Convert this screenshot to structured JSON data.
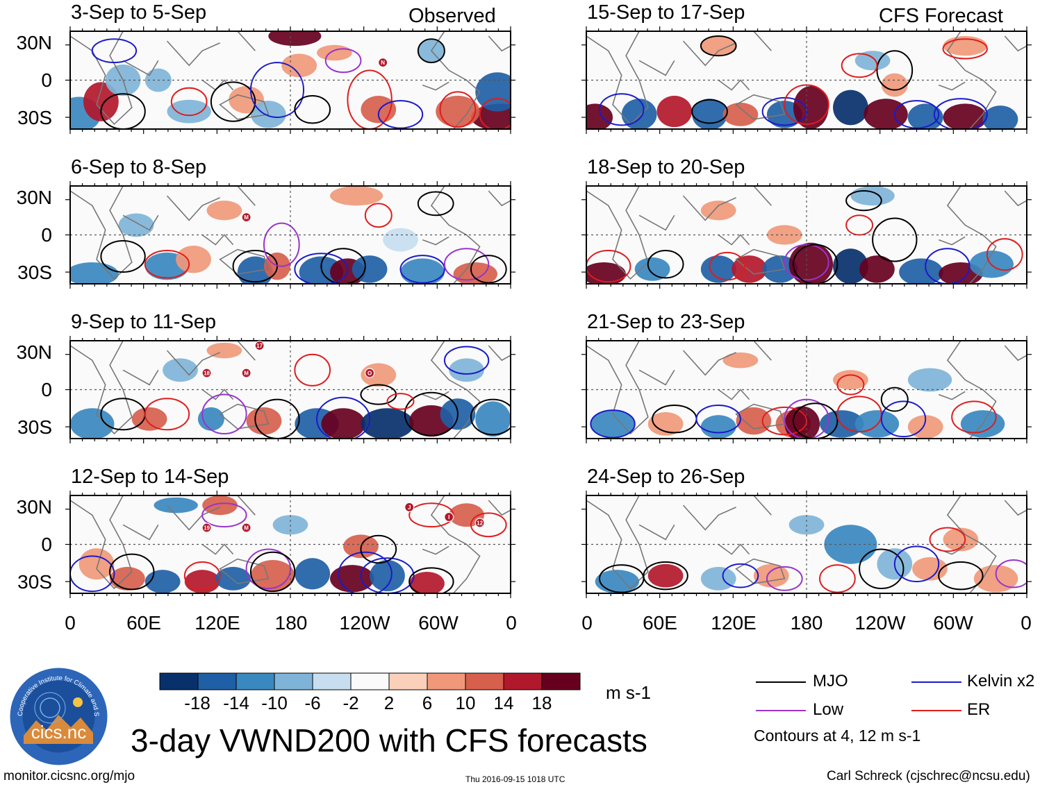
{
  "header": {
    "observed_label": "Observed",
    "forecast_label": "CFS Forecast"
  },
  "panels": {
    "observed": [
      {
        "title": "3-Sep to 5-Sep"
      },
      {
        "title": "6-Sep to 8-Sep"
      },
      {
        "title": "9-Sep to 11-Sep"
      },
      {
        "title": "12-Sep to 14-Sep"
      }
    ],
    "forecast": [
      {
        "title": "15-Sep to 17-Sep"
      },
      {
        "title": "18-Sep to 20-Sep"
      },
      {
        "title": "21-Sep to 23-Sep"
      },
      {
        "title": "24-Sep to 26-Sep"
      }
    ]
  },
  "axes": {
    "lat_labels": [
      "30N",
      "0",
      "30S"
    ],
    "lon_labels": [
      "0",
      "60E",
      "120E",
      "180",
      "120W",
      "60W",
      "0"
    ]
  },
  "storm_markers": {
    "p0": [
      "N"
    ],
    "p1": [
      "M"
    ],
    "p2": [
      "17",
      "18",
      "M",
      "O"
    ],
    "p3": [
      "19",
      "M",
      "J",
      "I",
      "12"
    ]
  },
  "colorbar": {
    "labels": [
      "-18",
      "-14",
      "-10",
      "-6",
      "-2",
      "2",
      "6",
      "10",
      "14",
      "18"
    ],
    "unit": "m s-1",
    "colors": [
      "#08306b",
      "#1f5fa5",
      "#3a88c0",
      "#7fb4d8",
      "#c7def0",
      "#fafafa",
      "#fbd0bb",
      "#f0997a",
      "#d6604d",
      "#b2182b",
      "#67001f"
    ]
  },
  "legend": {
    "items": [
      {
        "label": "MJO",
        "color": "#000000"
      },
      {
        "label": "Kelvin x2",
        "color": "#1a1acc"
      },
      {
        "label": "Low",
        "color": "#9933cc"
      },
      {
        "label": "ER",
        "color": "#e01c1c"
      }
    ],
    "note": "Contours at 4, 12 m s-1"
  },
  "title": "3-day VWND200 with CFS forecasts",
  "logo": {
    "text": "cics.nc",
    "ring_text": "Cooperative Institute for Climate and Satellites"
  },
  "footer": {
    "url": "monitor.cicsnc.org/mjo",
    "timestamp": "Thu 2016-09-15 1018 UTC",
    "credit": "Carl Schreck (cjschrec@ncsu.edu)"
  }
}
